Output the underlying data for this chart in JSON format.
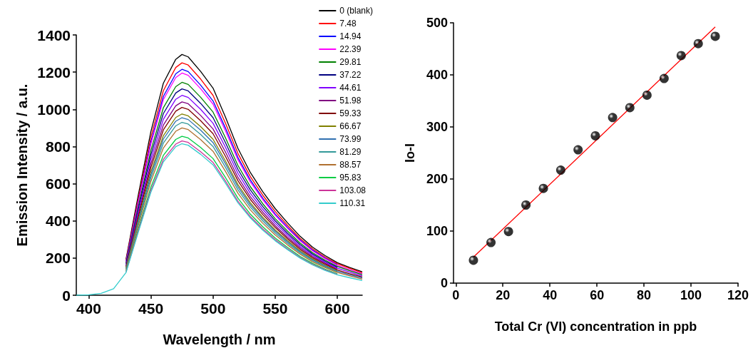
{
  "chart_data": [
    {
      "type": "line",
      "xlabel": "Wavelength / nm",
      "ylabel": "Emission Intensity / a.u.",
      "xlim": [
        390,
        620
      ],
      "xticks": [
        400,
        450,
        500,
        550,
        600
      ],
      "ylim": [
        0,
        1400
      ],
      "yticks": [
        0,
        200,
        400,
        600,
        800,
        1000,
        1200,
        1400
      ],
      "grid": false,
      "legend": "top right",
      "marker": "none",
      "line_style": "solid",
      "x": [
        390,
        400,
        410,
        420,
        430,
        440,
        450,
        460,
        470,
        475,
        480,
        490,
        500,
        510,
        520,
        530,
        540,
        550,
        560,
        570,
        580,
        590,
        600,
        610,
        620
      ],
      "series": [
        {
          "name": "0 (blank)",
          "color": "#000000",
          "values": [
            null,
            null,
            null,
            null,
            194,
            544,
            881,
            1140,
            1269,
            1295,
            1282,
            1204,
            1114,
            958,
            790,
            660,
            557,
            466,
            389,
            317,
            259,
            214,
            175,
            149,
            126
          ]
        },
        {
          "name": "7.48",
          "color": "#ff0000",
          "values": [
            null,
            null,
            null,
            null,
            188,
            525,
            850,
            1100,
            1225,
            1250,
            1238,
            1163,
            1075,
            925,
            763,
            638,
            538,
            450,
            375,
            306,
            250,
            206,
            169,
            144,
            121
          ]
        },
        {
          "name": "14.94",
          "color": "#0000ff",
          "values": [
            null,
            null,
            null,
            null,
            182,
            510,
            826,
            1069,
            1191,
            1215,
            1203,
            1130,
            1045,
            899,
            741,
            620,
            522,
            437,
            365,
            298,
            243,
            200,
            164,
            null,
            null
          ]
        },
        {
          "name": "22.39",
          "color": "#ff00ff",
          "values": [
            null,
            null,
            null,
            null,
            179,
            502,
            813,
            1052,
            1171,
            1195,
            1183,
            1111,
            1028,
            884,
            729,
            609,
            514,
            430,
            359,
            293,
            239,
            197,
            161,
            137,
            116
          ]
        },
        {
          "name": "29.81",
          "color": "#008000",
          "values": [
            null,
            null,
            null,
            null,
            172,
            481,
            779,
            1008,
            1122,
            1145,
            1134,
            1065,
            985,
            847,
            698,
            584,
            492,
            412,
            344,
            281,
            229,
            189,
            155,
            132,
            111
          ]
        },
        {
          "name": "37.22",
          "color": "#000080",
          "values": [
            null,
            null,
            null,
            null,
            167,
            466,
            755,
            977,
            1088,
            1110,
            1099,
            1032,
            955,
            821,
            677,
            566,
            477,
            400,
            333,
            272,
            222,
            183,
            150,
            null,
            null
          ]
        },
        {
          "name": "44.61",
          "color": "#8000ff",
          "values": [
            null,
            null,
            null,
            null,
            161,
            452,
            731,
            946,
            1054,
            1075,
            1064,
            1000,
            925,
            796,
            656,
            548,
            462,
            387,
            323,
            263,
            215,
            177,
            145,
            124,
            104
          ]
        },
        {
          "name": "51.98",
          "color": "#800080",
          "values": [
            null,
            null,
            null,
            null,
            156,
            437,
            707,
            915,
            1019,
            1040,
            1030,
            967,
            894,
            770,
            634,
            530,
            447,
            374,
            312,
            255,
            208,
            172,
            140,
            null,
            null
          ]
        },
        {
          "name": "59.33",
          "color": "#800000",
          "values": [
            null,
            null,
            null,
            null,
            152,
            424,
            687,
            889,
            990,
            1010,
            1000,
            939,
            869,
            747,
            616,
            515,
            434,
            364,
            303,
            247,
            202,
            167,
            136,
            116,
            98
          ]
        },
        {
          "name": "66.67",
          "color": "#808000",
          "values": [
            null,
            null,
            null,
            null,
            146,
            410,
            663,
            858,
            956,
            975,
            965,
            907,
            839,
            722,
            595,
            497,
            419,
            351,
            293,
            239,
            195,
            161,
            132,
            null,
            null
          ]
        },
        {
          "name": "73.99",
          "color": "#3070b0",
          "values": [
            null,
            null,
            null,
            null,
            143,
            401,
            649,
            840,
            936,
            955,
            945,
            888,
            821,
            707,
            583,
            487,
            411,
            344,
            287,
            234,
            191,
            158,
            129,
            110,
            93
          ]
        },
        {
          "name": "81.29",
          "color": "#339999",
          "values": [
            null,
            null,
            null,
            null,
            140,
            391,
            632,
            818,
            911,
            930,
            921,
            865,
            800,
            688,
            567,
            474,
            400,
            335,
            279,
            228,
            186,
            153,
            126,
            null,
            null
          ]
        },
        {
          "name": "88.57",
          "color": "#b07030",
          "values": [
            null,
            null,
            null,
            null,
            135,
            378,
            612,
            792,
            882,
            900,
            891,
            837,
            774,
            666,
            549,
            459,
            387,
            324,
            270,
            221,
            180,
            149,
            122,
            104,
            87
          ]
        },
        {
          "name": "95.83",
          "color": "#00cc44",
          "values": [
            null,
            null,
            null,
            null,
            128,
            359,
            581,
            752,
            838,
            855,
            846,
            795,
            735,
            633,
            522,
            436,
            368,
            308,
            257,
            209,
            171,
            141,
            115,
            null,
            null
          ]
        },
        {
          "name": "103.08",
          "color": "#cc3399",
          "values": [
            null,
            null,
            null,
            null,
            125,
            349,
            564,
            730,
            813,
            830,
            822,
            772,
            714,
            614,
            506,
            423,
            357,
            299,
            249,
            203,
            166,
            137,
            112,
            null,
            null
          ]
        },
        {
          "name": "110.31",
          "color": "#33cccc",
          "values": [
            0,
            2,
            10,
            35,
            122,
            342,
            554,
            717,
            799,
            815,
            807,
            758,
            701,
            603,
            497,
            416,
            350,
            293,
            245,
            200,
            163,
            134,
            110,
            94,
            79
          ]
        }
      ]
    },
    {
      "type": "scatter",
      "xlabel": "Total Cr (VI) concentration in ppb",
      "ylabel": "Io-I",
      "xlim": [
        -1,
        120
      ],
      "xticks": [
        0,
        20,
        40,
        60,
        80,
        100,
        120
      ],
      "ylim": [
        0,
        500
      ],
      "yticks": [
        0,
        100,
        200,
        300,
        400,
        500
      ],
      "grid": false,
      "series": [
        {
          "marker": "circle",
          "color": "#000000",
          "x": [
            7.48,
            14.94,
            22.39,
            29.81,
            37.22,
            44.61,
            51.98,
            59.33,
            66.67,
            73.99,
            81.29,
            88.57,
            95.83,
            103.08,
            110.31
          ],
          "values": [
            44,
            78,
            99,
            150,
            182,
            217,
            256,
            283,
            318,
            337,
            361,
            393,
            437,
            460,
            474
          ]
        },
        {
          "type": "line",
          "marker": "none",
          "color": "#ff0000",
          "x": [
            7.48,
            110.31
          ],
          "values": [
            50,
            492
          ]
        }
      ]
    }
  ]
}
